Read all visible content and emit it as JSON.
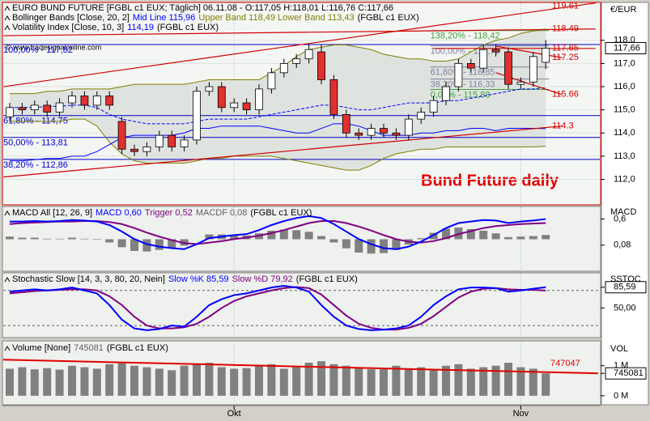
{
  "chart_data": [
    {
      "type": "candlestick",
      "headers": [
        [
          {
            "text": "EURO BUND FUTURE [FGBL c1 EUX; Täglich] 06.11.08 - O:117,05 H:118,01 L:116,76 C:117,66",
            "color": "#000000"
          }
        ],
        [
          {
            "text": "Bollinger Bands [Close, 20, 2]",
            "color": "#000000"
          },
          {
            "text": "Mid Line 115,96",
            "color": "#0000ff"
          },
          {
            "text": "Upper Band 118,49 Lower Band 113,43",
            "color": "#7f7f00"
          },
          {
            "text": "(FGBL c1 EUX)",
            "color": "#000000"
          }
        ],
        [
          {
            "text": "Volatility Index [Close, 10, 3]",
            "color": "#000000"
          },
          {
            "text": "114,19",
            "color": "#0000ff"
          },
          {
            "text": "(FGBL c1 EUX)",
            "color": "#000000"
          }
        ]
      ],
      "copyright": "© www.tradesignalonline.com",
      "annotation": "Bund Future daily",
      "axis_label": "€/EUR",
      "last_price": {
        "value": 117.66,
        "label": "117,66"
      },
      "open": [
        114.7,
        115.1,
        115.0,
        115.2,
        114.9,
        115.3,
        115.6,
        115.2,
        115.6,
        114.5,
        113.3,
        113.2,
        113.4,
        113.9,
        113.4,
        113.7,
        115.8,
        116.0,
        115.1,
        115.3,
        115.0,
        115.9,
        116.6,
        117.0,
        117.2,
        117.5,
        116.3,
        114.8,
        114.0,
        113.9,
        114.2,
        114.0,
        113.9,
        114.6,
        114.9,
        115.4,
        116.0,
        117.0,
        116.8,
        117.6,
        117.5,
        116.1,
        116.2,
        117.05
      ],
      "close": [
        115.1,
        115.0,
        115.2,
        114.9,
        115.3,
        115.6,
        115.2,
        115.6,
        115.2,
        113.3,
        113.2,
        113.4,
        113.9,
        113.4,
        113.7,
        115.8,
        116.0,
        115.1,
        115.3,
        115.0,
        115.9,
        116.6,
        117.0,
        117.2,
        117.6,
        116.3,
        114.8,
        114.0,
        113.9,
        114.2,
        114.0,
        113.9,
        114.6,
        114.9,
        115.4,
        116.0,
        117.0,
        116.8,
        117.6,
        117.5,
        116.1,
        116.2,
        117.3,
        117.66
      ],
      "high": [
        115.3,
        115.3,
        115.4,
        115.4,
        115.5,
        115.8,
        115.8,
        115.8,
        115.8,
        114.7,
        113.5,
        113.6,
        114.1,
        114.1,
        113.9,
        116.0,
        116.2,
        116.2,
        115.5,
        115.5,
        116.1,
        116.8,
        117.2,
        117.4,
        117.8,
        117.8,
        116.5,
        115.0,
        114.2,
        114.4,
        114.4,
        114.2,
        114.8,
        115.1,
        115.6,
        116.2,
        117.2,
        117.2,
        117.8,
        117.8,
        117.7,
        116.4,
        117.5,
        118.01
      ],
      "low": [
        114.5,
        114.8,
        114.8,
        114.7,
        114.7,
        115.1,
        115.0,
        115.0,
        115.0,
        113.1,
        113.0,
        113.0,
        113.2,
        113.2,
        113.2,
        113.5,
        115.6,
        114.9,
        114.9,
        114.8,
        114.8,
        115.7,
        116.4,
        116.8,
        117.0,
        116.1,
        114.6,
        113.8,
        113.7,
        113.7,
        113.8,
        113.7,
        113.7,
        114.4,
        114.7,
        115.2,
        115.8,
        116.6,
        116.6,
        117.3,
        115.9,
        115.9,
        116.0,
        116.76
      ],
      "up_color": "#ffffff",
      "down_color": "#e03030",
      "series": [
        {
          "color": "#7f7f00",
          "values": [
            115.7,
            115.7,
            115.7,
            115.8,
            115.8,
            115.9,
            115.9,
            115.9,
            115.9,
            116.0,
            116.1,
            116.1,
            116.1,
            116.1,
            116.1,
            116.2,
            116.3,
            116.3,
            116.3,
            116.3,
            116.3,
            116.6,
            116.9,
            117.3,
            117.6,
            117.7,
            117.8,
            117.8,
            117.7,
            117.6,
            117.4,
            117.3,
            117.2,
            117.2,
            117.1,
            117.1,
            117.2,
            117.5,
            117.8,
            118.0,
            118.1,
            118.3,
            118.4,
            118.49
          ]
        },
        {
          "color": "#7f7f00",
          "values": [
            114.5,
            114.5,
            114.5,
            114.5,
            114.5,
            114.6,
            114.6,
            114.3,
            113.6,
            113.1,
            112.8,
            112.7,
            112.7,
            112.7,
            112.7,
            112.8,
            112.9,
            112.9,
            113.0,
            113.0,
            113.0,
            113.0,
            112.9,
            112.8,
            112.7,
            112.6,
            112.5,
            112.4,
            112.4,
            112.6,
            112.9,
            113.1,
            113.2,
            113.3,
            113.3,
            113.4,
            113.4,
            113.4,
            113.4,
            113.4,
            113.4,
            113.4,
            113.4,
            113.43
          ]
        },
        {
          "color": "#0000ff",
          "dashed": true,
          "values": [
            115.1,
            115.1,
            115.1,
            115.15,
            115.15,
            115.2,
            115.2,
            115.1,
            114.8,
            114.6,
            114.5,
            114.4,
            114.4,
            114.4,
            114.4,
            114.5,
            114.6,
            114.6,
            114.6,
            114.6,
            114.7,
            114.8,
            114.9,
            115.0,
            115.1,
            115.2,
            115.2,
            115.1,
            115.0,
            115.0,
            115.1,
            115.2,
            115.3,
            115.3,
            115.3,
            115.4,
            115.4,
            115.5,
            115.6,
            115.7,
            115.8,
            115.9,
            115.9,
            115.96
          ]
        },
        {
          "color": "#0000ff",
          "values": [
            112.8,
            112.8,
            112.85,
            112.9,
            112.9,
            113.0,
            113.0,
            113.2,
            113.5,
            113.8,
            113.9,
            113.9,
            113.9,
            113.9,
            114.0,
            114.2,
            114.2,
            114.3,
            114.3,
            114.3,
            114.3,
            114.2,
            114.1,
            114.0,
            114.0,
            114.2,
            114.4,
            114.4,
            114.3,
            114.1,
            113.9,
            113.9,
            113.9,
            114.0,
            114.0,
            114.1,
            114.1,
            114.2,
            114.2,
            114.1,
            114.2,
            114.2,
            114.2,
            114.19
          ]
        }
      ],
      "fibs": [
        {
          "label": "100,00% - 117,82",
          "value": 117.82,
          "color": "#0000c0"
        },
        {
          "label": "61,80% - 114,75",
          "value": 114.75,
          "color": "#0000c0"
        },
        {
          "label": "50,00% - 113,81",
          "value": 113.81,
          "color": "#0000c0"
        },
        {
          "label": "38,20% - 112,86",
          "value": 112.86,
          "color": "#0000c0"
        },
        {
          "label": "138,20% - 118,42",
          "value": 118.42,
          "color": "#40a040"
        },
        {
          "label": "100,00% - 117,76",
          "value": 117.76,
          "color": "#8080a0"
        },
        {
          "label": "61,80% - 116,85",
          "value": 116.85,
          "color": "#8080a0"
        },
        {
          "label": "38,20% - 116,33",
          "value": 116.33,
          "color": "#8080a0"
        },
        {
          "label": "0,00% - 115,88",
          "value": 115.88,
          "color": "#40a040"
        }
      ],
      "trendlines": [
        {
          "label": "119.61",
          "start": 116.0,
          "end": 119.61
        },
        {
          "label": "118.49",
          "start": 118.2,
          "end": 118.49
        },
        {
          "label": "117.65",
          "start": 117.65,
          "end": 117.65
        },
        {
          "label": "117.25",
          "start": 117.75,
          "end": 117.25
        },
        {
          "label": "115.66",
          "start": 116.6,
          "end": 115.66
        },
        {
          "label": "114.3",
          "start": 112.1,
          "end": 114.3
        }
      ],
      "trend_color": "#d00000",
      "ylim": [
        110.9,
        119.6
      ],
      "yticks": [
        {
          "value": 112,
          "label": "112,0"
        },
        {
          "value": 113,
          "label": "113,0"
        },
        {
          "value": 114,
          "label": "114,0"
        },
        {
          "value": 115,
          "label": "115,0"
        },
        {
          "value": 116,
          "label": "116,0"
        },
        {
          "value": 117,
          "label": "117,0"
        },
        {
          "value": 118,
          "label": "118,0"
        }
      ]
    },
    {
      "type": "line",
      "headers": [
        [
          {
            "text": "MACD All [12, 26, 9]",
            "color": "#000000"
          },
          {
            "text": "MACD 0,60",
            "color": "#0000ff"
          },
          {
            "text": "Trigger 0,52",
            "color": "#800080"
          },
          {
            "text": "MACDF 0,08",
            "color": "#606060"
          },
          {
            "text": "(FGBL c1 EUX)",
            "color": "#000000"
          }
        ]
      ],
      "axis_label": "MACD",
      "series": [
        {
          "color": "#808080",
          "type": "bar",
          "axis": "y2",
          "values": [
            0.05,
            0.03,
            0.03,
            0.01,
            0.01,
            0.03,
            0.01,
            -0.01,
            -0.06,
            -0.15,
            -0.22,
            -0.23,
            -0.2,
            -0.16,
            -0.12,
            0,
            0.09,
            0.09,
            0.08,
            0.07,
            0.11,
            0.16,
            0.18,
            0.17,
            0.14,
            0.06,
            -0.06,
            -0.17,
            -0.25,
            -0.27,
            -0.26,
            -0.2,
            -0.1,
            0.02,
            0.12,
            0.2,
            0.22,
            0.19,
            0.16,
            0.11,
            0.04,
            0.05,
            0.06,
            0.08
          ]
        },
        {
          "color": "#800080",
          "values": [
            0.5,
            0.52,
            0.53,
            0.54,
            0.55,
            0.55,
            0.56,
            0.56,
            0.54,
            0.5,
            0.42,
            0.33,
            0.25,
            0.18,
            0.12,
            0.1,
            0.13,
            0.16,
            0.2,
            0.23,
            0.27,
            0.32,
            0.38,
            0.45,
            0.52,
            0.56,
            0.56,
            0.52,
            0.45,
            0.37,
            0.28,
            0.2,
            0.15,
            0.13,
            0.16,
            0.22,
            0.3,
            0.36,
            0.42,
            0.46,
            0.48,
            0.5,
            0.51,
            0.52
          ]
        },
        {
          "color": "#0000ff",
          "values": [
            0.55,
            0.55,
            0.56,
            0.55,
            0.56,
            0.58,
            0.57,
            0.55,
            0.48,
            0.35,
            0.2,
            0.1,
            0.05,
            0.02,
            0.0,
            0.1,
            0.22,
            0.25,
            0.28,
            0.3,
            0.38,
            0.48,
            0.56,
            0.62,
            0.66,
            0.62,
            0.5,
            0.35,
            0.2,
            0.1,
            0.02,
            0.0,
            0.05,
            0.15,
            0.28,
            0.42,
            0.52,
            0.55,
            0.58,
            0.57,
            0.52,
            0.55,
            0.57,
            0.6
          ]
        }
      ],
      "ylim": [
        -0.44,
        0.835
      ],
      "y2lim": [
        -0.6,
        0.6
      ],
      "yticks": [
        {
          "value": 0.6,
          "label": "0,6"
        },
        {
          "value": 0.08,
          "label": "0,08"
        }
      ]
    },
    {
      "type": "line",
      "headers": [
        [
          {
            "text": "Stochastic Slow [14, 3, 3, 80, 20, Nein]",
            "color": "#000000"
          },
          {
            "text": "Slow %K 85,59",
            "color": "#0000ff"
          },
          {
            "text": "Slow %D 79,92",
            "color": "#800080"
          },
          {
            "text": "(FGBL c1 EUX)",
            "color": "#000000"
          }
        ]
      ],
      "axis_label": "SSTOC",
      "hlines": [
        80,
        20
      ],
      "series": [
        {
          "color": "#800080",
          "values": [
            75,
            77,
            79,
            80,
            81,
            82,
            82,
            80,
            70,
            55,
            35,
            20,
            15,
            15,
            17,
            23,
            35,
            50,
            62,
            70,
            75,
            80,
            84,
            86,
            84,
            73,
            55,
            37,
            23,
            16,
            13,
            13,
            16,
            23,
            36,
            52,
            68,
            78,
            83,
            84,
            82,
            81,
            81,
            79.92
          ]
        },
        {
          "color": "#0000ff",
          "values": [
            78,
            80,
            82,
            80,
            82,
            85,
            80,
            75,
            55,
            30,
            15,
            12,
            14,
            20,
            18,
            35,
            55,
            65,
            72,
            75,
            80,
            85,
            88,
            85,
            78,
            55,
            35,
            20,
            14,
            12,
            13,
            15,
            20,
            35,
            55,
            70,
            82,
            85,
            85,
            84,
            78,
            80,
            83,
            85.59
          ]
        }
      ],
      "ylim": [
        -0.7,
        108.8
      ],
      "yticks": [
        {
          "value": 85.59,
          "label": "85,59",
          "boxed": true
        },
        {
          "value": 50,
          "label": "50,00"
        }
      ]
    },
    {
      "type": "bar",
      "headers": [
        [
          {
            "text": "Volume [None]",
            "color": "#000000"
          },
          {
            "text": "745081",
            "color": "#606060"
          },
          {
            "text": "(FGBL c1 EUX)",
            "color": "#000000"
          }
        ]
      ],
      "axis_label": "VOL",
      "categories": [
        null,
        null,
        null,
        null,
        null,
        null,
        null,
        null,
        null,
        null,
        null,
        null,
        null,
        null,
        null,
        null,
        null,
        null,
        "Okt",
        null,
        null,
        null,
        null,
        null,
        null,
        null,
        null,
        null,
        null,
        null,
        null,
        null,
        null,
        null,
        null,
        null,
        null,
        null,
        null,
        null,
        null,
        "Nov",
        null,
        null
      ],
      "values": [
        900000,
        950000,
        880000,
        920000,
        870000,
        1000000,
        950000,
        900000,
        1050000,
        1100000,
        1000000,
        950000,
        900000,
        850000,
        1000000,
        1050000,
        1100000,
        950000,
        900000,
        920000,
        1000000,
        1050000,
        900000,
        950000,
        1100000,
        1150000,
        1050000,
        1000000,
        950000,
        880000,
        920000,
        1000000,
        900000,
        950000,
        870000,
        1000000,
        1050000,
        900000,
        950000,
        1000000,
        1100000,
        950000,
        900000,
        745081
      ],
      "color": "#808080",
      "trendlines": [
        {
          "label": "747047",
          "start": 1200000,
          "end": 747047
        }
      ],
      "trend_color": "#e00000",
      "ylim": [
        -300000,
        1800000
      ],
      "yticks": [
        {
          "value": 1000000,
          "label": "1 M"
        },
        {
          "value": 745081,
          "label": "745081",
          "boxed": true
        },
        {
          "value": 0,
          "label": "0 M"
        }
      ]
    }
  ]
}
